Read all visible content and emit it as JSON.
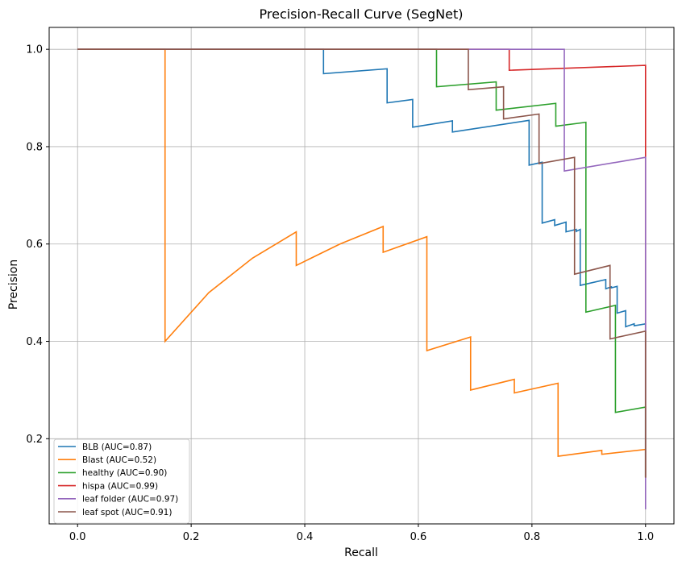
{
  "chart_data": {
    "type": "line",
    "title": "Precision-Recall Curve (SegNet)",
    "xlabel": "Recall",
    "ylabel": "Precision",
    "xlim": [
      -0.05,
      1.05
    ],
    "ylim": [
      0.025,
      1.045
    ],
    "xticks": [
      0.0,
      0.2,
      0.4,
      0.6,
      0.8,
      1.0
    ],
    "xtick_labels": [
      "0.0",
      "0.2",
      "0.4",
      "0.6",
      "0.8",
      "1.0"
    ],
    "yticks": [
      0.2,
      0.4,
      0.6,
      0.8,
      1.0
    ],
    "ytick_labels": [
      "0.2",
      "0.4",
      "0.6",
      "0.8",
      "1.0"
    ],
    "grid": true,
    "legend_position": "lower-left",
    "series": [
      {
        "name": "BLB (AUC=0.87)",
        "color": "#1f77b4",
        "points": [
          [
            0.0,
            1.0
          ],
          [
            0.433,
            1.0
          ],
          [
            0.433,
            0.95
          ],
          [
            0.545,
            0.96
          ],
          [
            0.545,
            0.89
          ],
          [
            0.59,
            0.897
          ],
          [
            0.59,
            0.84
          ],
          [
            0.66,
            0.853
          ],
          [
            0.66,
            0.83
          ],
          [
            0.795,
            0.854
          ],
          [
            0.795,
            0.762
          ],
          [
            0.818,
            0.768
          ],
          [
            0.818,
            0.643
          ],
          [
            0.84,
            0.65
          ],
          [
            0.84,
            0.638
          ],
          [
            0.86,
            0.645
          ],
          [
            0.86,
            0.625
          ],
          [
            0.878,
            0.63
          ],
          [
            0.878,
            0.626
          ],
          [
            0.885,
            0.63
          ],
          [
            0.885,
            0.515
          ],
          [
            0.93,
            0.527
          ],
          [
            0.93,
            0.508
          ],
          [
            0.94,
            0.512
          ],
          [
            0.94,
            0.51
          ],
          [
            0.95,
            0.513
          ],
          [
            0.95,
            0.458
          ],
          [
            0.965,
            0.463
          ],
          [
            0.965,
            0.43
          ],
          [
            0.98,
            0.436
          ],
          [
            0.98,
            0.432
          ],
          [
            1.0,
            0.436
          ],
          [
            1.0,
            0.12
          ]
        ]
      },
      {
        "name": "Blast (AUC=0.52)",
        "color": "#ff7f0e",
        "points": [
          [
            0.0,
            1.0
          ],
          [
            0.154,
            1.0
          ],
          [
            0.154,
            0.4
          ],
          [
            0.231,
            0.5
          ],
          [
            0.308,
            0.571
          ],
          [
            0.385,
            0.625
          ],
          [
            0.385,
            0.556
          ],
          [
            0.462,
            0.6
          ],
          [
            0.538,
            0.636
          ],
          [
            0.538,
            0.583
          ],
          [
            0.615,
            0.615
          ],
          [
            0.615,
            0.381
          ],
          [
            0.692,
            0.409
          ],
          [
            0.692,
            0.3
          ],
          [
            0.769,
            0.322
          ],
          [
            0.769,
            0.294
          ],
          [
            0.846,
            0.314
          ],
          [
            0.846,
            0.164
          ],
          [
            0.923,
            0.176
          ],
          [
            0.923,
            0.168
          ],
          [
            1.0,
            0.178
          ],
          [
            1.0,
            0.12
          ]
        ]
      },
      {
        "name": "healthy (AUC=0.90)",
        "color": "#2ca02c",
        "points": [
          [
            0.0,
            1.0
          ],
          [
            0.632,
            1.0
          ],
          [
            0.632,
            0.923
          ],
          [
            0.737,
            0.933
          ],
          [
            0.737,
            0.875
          ],
          [
            0.842,
            0.889
          ],
          [
            0.842,
            0.842
          ],
          [
            0.895,
            0.85
          ],
          [
            0.895,
            0.46
          ],
          [
            0.947,
            0.474
          ],
          [
            0.947,
            0.254
          ],
          [
            1.0,
            0.265
          ],
          [
            1.0,
            0.12
          ]
        ]
      },
      {
        "name": "hispa (AUC=0.99)",
        "color": "#d62728",
        "points": [
          [
            0.0,
            1.0
          ],
          [
            0.76,
            1.0
          ],
          [
            0.76,
            0.957
          ],
          [
            1.0,
            0.967
          ],
          [
            1.0,
            0.12
          ]
        ]
      },
      {
        "name": "leaf folder (AUC=0.97)",
        "color": "#9467bd",
        "points": [
          [
            0.0,
            1.0
          ],
          [
            0.857,
            1.0
          ],
          [
            0.857,
            0.75
          ],
          [
            1.0,
            0.778
          ],
          [
            1.0,
            0.055
          ]
        ]
      },
      {
        "name": "leaf spot (AUC=0.91)",
        "color": "#8c564b",
        "points": [
          [
            0.0,
            1.0
          ],
          [
            0.688,
            1.0
          ],
          [
            0.688,
            0.917
          ],
          [
            0.75,
            0.923
          ],
          [
            0.75,
            0.857
          ],
          [
            0.8125,
            0.867
          ],
          [
            0.8125,
            0.765
          ],
          [
            0.875,
            0.778
          ],
          [
            0.875,
            0.538
          ],
          [
            0.9375,
            0.556
          ],
          [
            0.9375,
            0.405
          ],
          [
            1.0,
            0.421
          ],
          [
            1.0,
            0.12
          ]
        ]
      }
    ]
  }
}
